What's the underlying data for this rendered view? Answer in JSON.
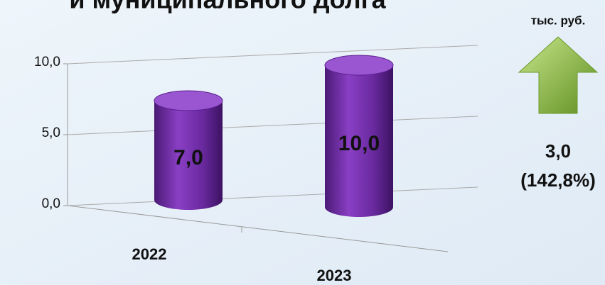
{
  "chart_data": {
    "type": "bar3d",
    "title": "и муниципального долга",
    "unit_label": "тыс. руб.",
    "categories": [
      "2022",
      "2023"
    ],
    "values": [
      7,
      10
    ],
    "value_labels": [
      "7,0",
      "10,0"
    ],
    "color": "#7030a0",
    "ylim": [
      0,
      10
    ],
    "yticks": [
      {
        "value": 0,
        "label": "0,0"
      },
      {
        "value": 5,
        "label": "5,0"
      },
      {
        "value": 10,
        "label": "10,0"
      }
    ],
    "grid": true,
    "annotation": {
      "change": "3,0",
      "percent": "(142,8%)"
    }
  }
}
